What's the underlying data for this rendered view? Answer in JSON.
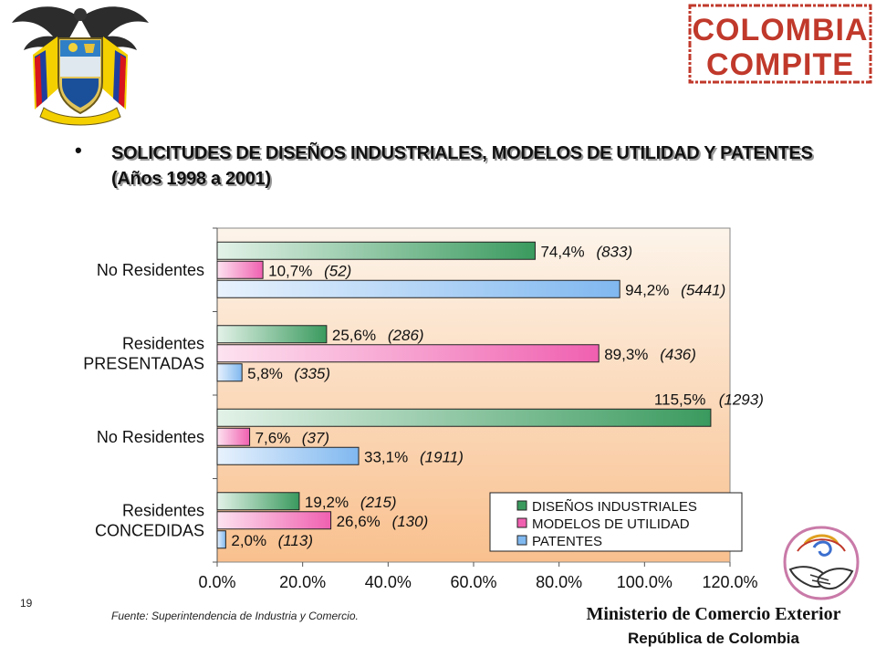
{
  "header": {
    "bullet": "•",
    "title": "SOLICITUDES DE DISEÑOS INDUSTRIALES, MODELOS DE UTILIDAD Y PATENTES  (Años 1998 a 2001)",
    "stamp_text_line1": "COLOMBIA",
    "stamp_text_line2": "COMPITE"
  },
  "chart_data": {
    "type": "bar",
    "orientation": "horizontal",
    "categories": [
      "No Residentes",
      "Residentes PRESENTADAS",
      "No Residentes",
      "Residentes CONCEDIDAS"
    ],
    "category_lines": [
      [
        "No Residentes"
      ],
      [
        "Residentes",
        "PRESENTADAS"
      ],
      [
        "No Residentes"
      ],
      [
        "Residentes",
        "CONCEDIDAS"
      ]
    ],
    "series": [
      {
        "name": "DISEÑOS INDUSTRIALES",
        "values": [
          74.4,
          25.6,
          115.5,
          19.2
        ],
        "labels": [
          "74,4%",
          "25,6%",
          "115,5%",
          "19,2%"
        ],
        "counts": [
          "(833)",
          "(286)",
          "(1293)",
          "(215)"
        ]
      },
      {
        "name": "MODELOS DE UTILIDAD",
        "values": [
          10.7,
          89.3,
          7.6,
          26.6
        ],
        "labels": [
          "10,7%",
          "89,3%",
          "7,6%",
          "26,6%"
        ],
        "counts": [
          "(52)",
          "(436)",
          "(37)",
          "(130)"
        ]
      },
      {
        "name": "PATENTES",
        "values": [
          94.2,
          5.8,
          33.1,
          2.0
        ],
        "labels": [
          "94,2%",
          "5,8%",
          "33,1%",
          "2,0%"
        ],
        "counts": [
          "(5441)",
          "(335)",
          "(1911)",
          "(113)"
        ]
      }
    ],
    "xlim": [
      0,
      120
    ],
    "xticks": [
      "0.0%",
      "20.0%",
      "40.0%",
      "60.0%",
      "80.0%",
      "100.0%",
      "120.0%"
    ],
    "grid": false,
    "legend_position": "bottom-right",
    "colors": {
      "DISEÑOS INDUSTRIALES": "#3a9a5e",
      "MODELOS DE UTILIDAD": "#f060b0",
      "PATENTES": "#80b8f0",
      "plot_background_top": "#fdf4ea",
      "plot_background_bottom": "#f9c08e"
    }
  },
  "footer": {
    "slide_number": "19",
    "source": "Fuente: Superintendencia de Industria y Comercio.",
    "ministry": "Ministerio de Comercio Exterior",
    "country": "República de Colombia"
  },
  "icons": {
    "crest": "colombian-coat-of-arms-icon",
    "stamp": "colombia-compite-stamp-icon",
    "logo": "clasped-hands-logo-icon"
  }
}
